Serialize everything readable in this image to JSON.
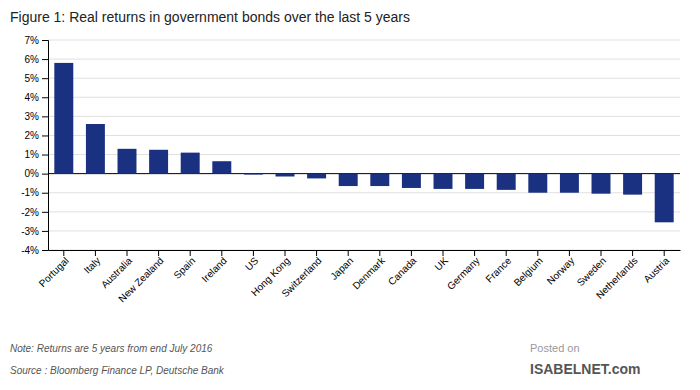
{
  "chart_data": {
    "type": "bar",
    "title": "Figure 1: Real returns in government bonds over the last 5 years",
    "categories": [
      "Portugal",
      "Italy",
      "Australia",
      "New Zealand",
      "Spain",
      "Ireland",
      "US",
      "Hong Kong",
      "Switzerland",
      "Japan",
      "Denmark",
      "Canada",
      "UK",
      "Germany",
      "France",
      "Belgium",
      "Norway",
      "Sweden",
      "Netherlands",
      "Austria"
    ],
    "values": [
      5.8,
      2.6,
      1.3,
      1.25,
      1.1,
      0.65,
      -0.05,
      -0.15,
      -0.25,
      -0.65,
      -0.65,
      -0.75,
      -0.8,
      -0.8,
      -0.85,
      -1.0,
      -1.0,
      -1.05,
      -1.1,
      -2.55
    ],
    "color": "#1a3080",
    "ylim": [
      -4,
      7
    ],
    "yticks": [
      {
        "value": -4,
        "label": "-4%"
      },
      {
        "value": -3,
        "label": "-3%"
      },
      {
        "value": -2,
        "label": "-2%"
      },
      {
        "value": -1,
        "label": "-1%"
      },
      {
        "value": 0,
        "label": "0%"
      },
      {
        "value": 1,
        "label": "1%"
      },
      {
        "value": 2,
        "label": "2%"
      },
      {
        "value": 3,
        "label": "3%"
      },
      {
        "value": 4,
        "label": "4%"
      },
      {
        "value": 5,
        "label": "5%"
      },
      {
        "value": 6,
        "label": "6%"
      },
      {
        "value": 7,
        "label": "7%"
      }
    ],
    "grid": true,
    "annotations": [
      "Note: Returns are 5 years from end July 2016",
      "Source : Bloomberg Finance LP, Deutsche Bank",
      "Posted on",
      "ISABELNET.com"
    ]
  }
}
